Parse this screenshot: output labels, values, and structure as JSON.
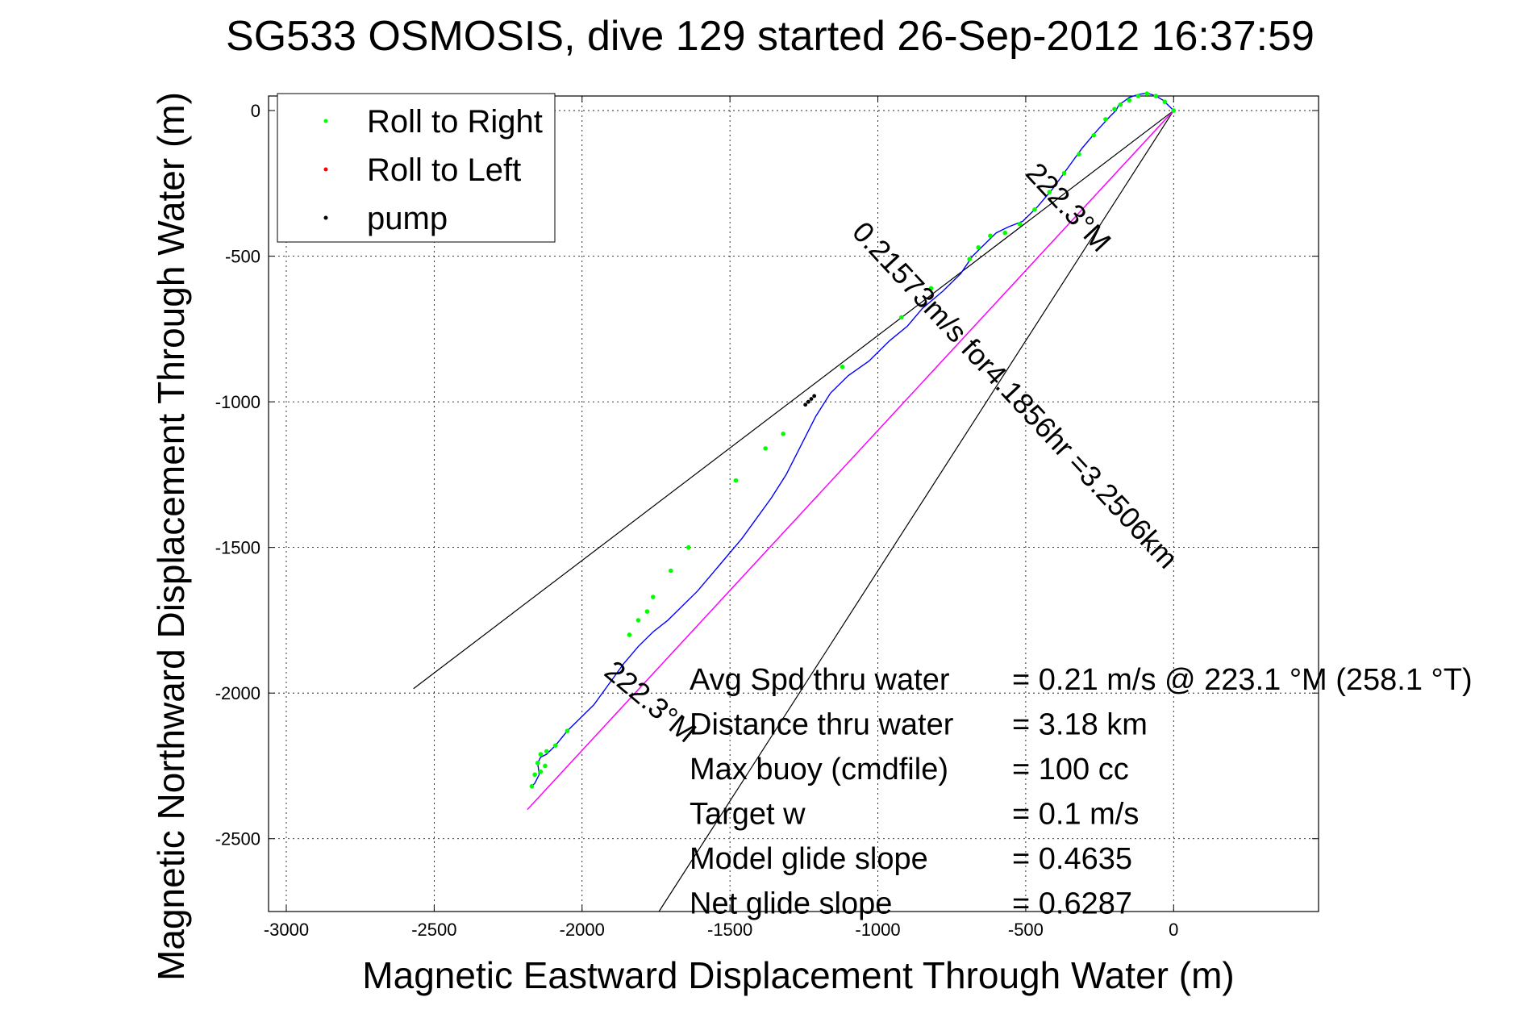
{
  "chart_data": {
    "type": "line",
    "title": "SG533 OSMOSIS, dive 129 started 26-Sep-2012 16:37:59",
    "xlabel": "Magnetic Eastward Displacement Through Water (m)",
    "ylabel": "Magnetic Northward Displacement Through Water (m)",
    "xlim": [
      -3060,
      490
    ],
    "ylim": [
      -2750,
      50
    ],
    "xticks": [
      -3000,
      -2500,
      -2000,
      -1500,
      -1000,
      -500,
      0
    ],
    "yticks": [
      0,
      -500,
      -1000,
      -1500,
      -2000,
      -2500
    ],
    "xtick_labels": [
      "-3000",
      "-2500",
      "-2000",
      "-1500",
      "-1000",
      "-500",
      "0"
    ],
    "ytick_labels": [
      "0",
      "-500",
      "-1000",
      "-1500",
      "-2000",
      "-2500"
    ],
    "grid": true,
    "legend_position": "top-left",
    "legend": [
      {
        "label": "Roll to Right",
        "color": "#00ff00"
      },
      {
        "label": "Roll to Left",
        "color": "#ff0000"
      },
      {
        "label": "pump",
        "color": "#000000"
      }
    ],
    "track": {
      "color": "#0000ff",
      "x": [
        0,
        -15,
        -35,
        -60,
        -90,
        -120,
        -150,
        -170,
        -185,
        -195,
        -215,
        -260,
        -310,
        -360,
        -410,
        -460,
        -510,
        -560,
        -600,
        -630,
        -680,
        -720,
        -780,
        -850,
        -900,
        -960,
        -1030,
        -1100,
        -1160,
        -1210,
        -1260,
        -1310,
        -1360,
        -1410,
        -1460,
        -1510,
        -1560,
        -1610,
        -1660,
        -1710,
        -1760,
        -1810,
        -1860,
        -1910,
        -1960,
        -2000,
        -2050,
        -2090,
        -2120,
        -2140,
        -2150,
        -2145,
        -2160,
        -2170
      ],
      "y": [
        0,
        15,
        35,
        50,
        60,
        55,
        45,
        30,
        20,
        0,
        -20,
        -70,
        -130,
        -200,
        -270,
        -330,
        -380,
        -400,
        -420,
        -450,
        -500,
        -560,
        -620,
        -680,
        -740,
        -790,
        -860,
        -910,
        -970,
        -1050,
        -1150,
        -1250,
        -1330,
        -1400,
        -1470,
        -1530,
        -1590,
        -1650,
        -1700,
        -1750,
        -1790,
        -1840,
        -1900,
        -1970,
        -2040,
        -2080,
        -2130,
        -2180,
        -2210,
        -2220,
        -2240,
        -2280,
        -2310,
        -2320
      ]
    },
    "green_points": {
      "color": "#00ff00",
      "x": [
        0,
        -30,
        -60,
        -90,
        -120,
        -150,
        -180,
        -200,
        -230,
        -270,
        -320,
        -370,
        -420,
        -470,
        -520,
        -570,
        -620,
        -660,
        -690,
        -820,
        -920,
        -1120,
        -1320,
        -1380,
        -1480,
        -1640,
        -1700,
        -1760,
        -1780,
        -1810,
        -1840,
        -2050,
        -2090,
        -2120,
        -2140,
        -2150,
        -2160,
        -2170,
        -2140,
        -2125
      ],
      "y": [
        0,
        30,
        50,
        58,
        50,
        35,
        20,
        5,
        -30,
        -85,
        -150,
        -215,
        -280,
        -340,
        -390,
        -420,
        -430,
        -470,
        -510,
        -610,
        -710,
        -880,
        -1110,
        -1160,
        -1270,
        -1500,
        -1580,
        -1670,
        -1720,
        -1750,
        -1800,
        -2130,
        -2180,
        -2200,
        -2210,
        -2240,
        -2280,
        -2320,
        -2270,
        -2250
      ]
    },
    "pump_points": {
      "color": "#000000",
      "x": [
        -1215,
        -1225,
        -1235,
        -1245
      ],
      "y": [
        -980,
        -990,
        -1000,
        -1010
      ]
    },
    "heading_line": {
      "color": "#ff00ff",
      "x": [
        0,
        -2185
      ],
      "y": [
        0,
        -2400
      ]
    },
    "fan_lines": [
      {
        "color": "#000000",
        "x": [
          0,
          -2570
        ],
        "y": [
          0,
          -1985
        ]
      },
      {
        "color": "#000000",
        "x": [
          0,
          -1740
        ],
        "y": [
          0,
          -2750
        ]
      }
    ],
    "rotated_labels": [
      {
        "text": "222.3°M",
        "x": -1790,
        "y": -2055,
        "angle": 40
      },
      {
        "text": "0.21573m/s for4.1856hr =3.2506km",
        "x": -560,
        "y": -1000,
        "angle": 47
      },
      {
        "text": "222.3°M",
        "x": -380,
        "y": -355,
        "angle": 47
      }
    ],
    "annotations": [
      {
        "label": "Avg Spd thru water",
        "value": "=  0.21 m/s @ 223.1 °M (258.1 °T)"
      },
      {
        "label": "Distance thru water",
        "value": "=  3.18 km"
      },
      {
        "label": "Max buoy (cmdfile)",
        "value": "= 100 cc"
      },
      {
        "label": "Target w",
        "value": "= 0.1 m/s"
      },
      {
        "label": "Model glide slope",
        "value": "= 0.4635"
      },
      {
        "label": "Net glide slope",
        "value": "= 0.6287"
      }
    ]
  }
}
